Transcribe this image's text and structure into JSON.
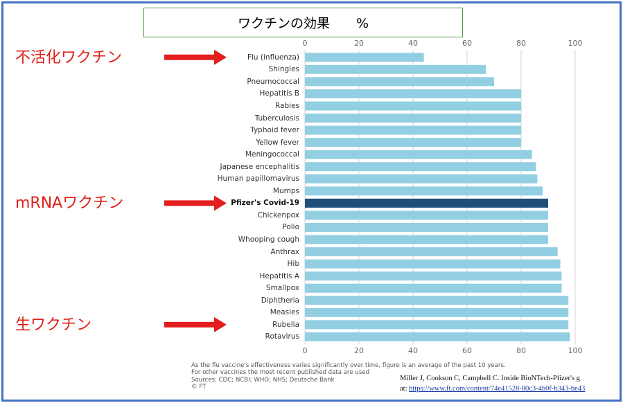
{
  "title": "ワクチンの効果　　%",
  "annotations": [
    {
      "text": "不活化ワクチン",
      "target": "Flu (influenza)"
    },
    {
      "text": "mRNAワクチン",
      "target": "Pfizer's Covid-19"
    },
    {
      "text": "生ワクチン",
      "target": "Rubella"
    }
  ],
  "footnote": "As the flu vaccine's effectiveness varies significantly over time, figure is an average of the past 10 years.\nFor other vaccines the most recent published data are used\nSources: CDC; NCBI; WHO; NHS; Deutsche Bank\n© FT",
  "citation": {
    "line1": "Miller J, Cookson C, Campbell C. Inside BioNTech-Pfizer's g",
    "line2_prefix": "at: ",
    "line2_link": "https://www.ft.com/content/74e41528-80c3-4b0f-b343-be43"
  },
  "colors": {
    "bar": "#93cfe3",
    "highlight": "#1f4e79",
    "arrow": "#e41e1e",
    "frame": "#4472c4"
  },
  "chart_data": {
    "type": "bar",
    "orientation": "horizontal",
    "xlim": [
      0,
      100
    ],
    "ticks": [
      0,
      20,
      40,
      60,
      80,
      100
    ],
    "grid": true,
    "highlight": "Pfizer's Covid-19",
    "categories": [
      "Flu (influenza)",
      "Shingles",
      "Pneumococcal",
      "Hepatitis B",
      "Rabies",
      "Tuberculosis",
      "Typhoid fever",
      "Yellow fever",
      "Meningococcal",
      "Japanese encephalitis",
      "Human papillomavirus",
      "Mumps",
      "Pfizer's Covid-19",
      "Chickenpox",
      "Polio",
      "Whooping cough",
      "Anthrax",
      "Hib",
      "Hepatitis A",
      "Smallpox",
      "Diphtheria",
      "Measles",
      "Rubella",
      "Rotavirus"
    ],
    "values": [
      44,
      67,
      70,
      80,
      80,
      80,
      80,
      80,
      84,
      85.5,
      86,
      88,
      90,
      90,
      90,
      90,
      93.5,
      94.5,
      95,
      95,
      97.5,
      97.5,
      97.5,
      98
    ]
  }
}
